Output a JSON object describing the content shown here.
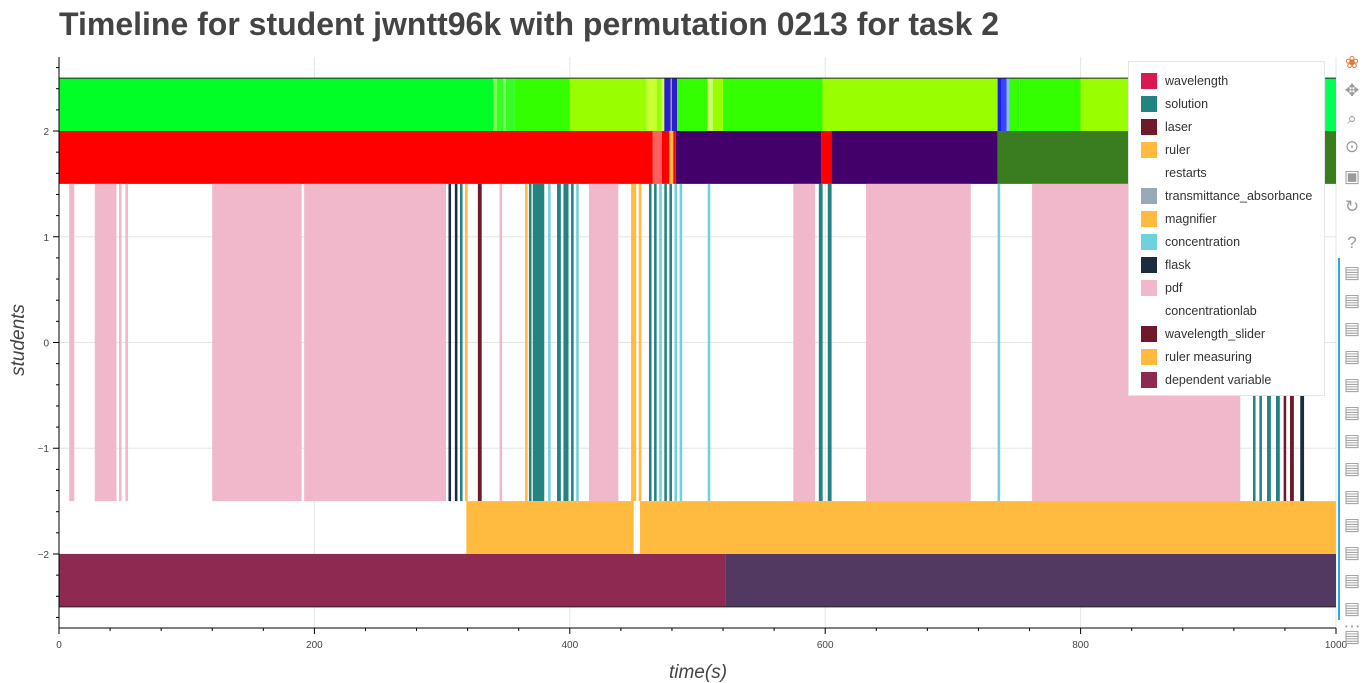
{
  "title": "Timeline for student jwntt96k with permutation 0213 for task 2",
  "chart_data": {
    "type": "timeline",
    "title": "Timeline for student jwntt96k with permutation 0213 for task 2",
    "xlabel": "time(s)",
    "ylabel": "students",
    "xlim": [
      0,
      1000
    ],
    "ylim": [
      -2.7,
      2.7
    ],
    "xticks": [
      0,
      200,
      400,
      600,
      800,
      1000
    ],
    "yticks": [
      -2,
      -1,
      0,
      1,
      2
    ],
    "ytick_labels": [
      "−2",
      "−1",
      "0",
      "1",
      "2"
    ],
    "grid": true,
    "legend_position": "top-right",
    "legend": [
      {
        "name": "wavelength",
        "color": "#d81b4f"
      },
      {
        "name": "solution",
        "color": "#228380"
      },
      {
        "name": "laser",
        "color": "#6e1a2a"
      },
      {
        "name": "ruler",
        "color": "#ffba3f"
      },
      {
        "name": "restarts",
        "color": "#ffffff"
      },
      {
        "name": "transmittance_absorbance",
        "color": "#9aa8bb"
      },
      {
        "name": "magnifier",
        "color": "#ffba3f"
      },
      {
        "name": "concentration",
        "color": "#6fd1dc"
      },
      {
        "name": "flask",
        "color": "#1b2c3e"
      },
      {
        "name": "pdf",
        "color": "#f0b8ca"
      },
      {
        "name": "concentrationlab",
        "color": "#ffffff"
      },
      {
        "name": "wavelength_slider",
        "color": "#6e1a2a"
      },
      {
        "name": "ruler measuring",
        "color": "#ffba3f"
      },
      {
        "name": "dependent variable",
        "color": "#8e2a51"
      }
    ],
    "rows": [
      {
        "y0": 2.0,
        "y1": 2.5,
        "segments": [
          [
            0,
            340,
            "#00ff26"
          ],
          [
            340,
            343,
            "#7dff4d"
          ],
          [
            343,
            348,
            "#33ff26"
          ],
          [
            348,
            350,
            "#88ff66"
          ],
          [
            350,
            357,
            "#33ff26"
          ],
          [
            357,
            400,
            "#33ff00"
          ],
          [
            400,
            460,
            "#99ff00"
          ],
          [
            460,
            468,
            "#c8ff33"
          ],
          [
            468,
            472,
            "#99ff00"
          ],
          [
            472,
            474,
            "#ccff66"
          ],
          [
            474,
            479,
            "#2b1fc8"
          ],
          [
            479,
            480,
            "#b08cff"
          ],
          [
            480,
            484,
            "#2b1fc8"
          ],
          [
            484,
            508,
            "#33ff00"
          ],
          [
            508,
            512,
            "#c8ff66"
          ],
          [
            512,
            520,
            "#99ff00"
          ],
          [
            520,
            598,
            "#33ff00"
          ],
          [
            598,
            735,
            "#99ff00"
          ],
          [
            735,
            738,
            "#1c1ee0"
          ],
          [
            738,
            742,
            "#3545ff"
          ],
          [
            742,
            744,
            "#8fb8ff"
          ],
          [
            744,
            752,
            "#33ff00"
          ],
          [
            752,
            800,
            "#33ff00"
          ],
          [
            800,
            845,
            "#99ff00"
          ],
          [
            845,
            992,
            "#33ff00"
          ],
          [
            992,
            1000,
            "#00ff55"
          ]
        ]
      },
      {
        "y0": 1.5,
        "y1": 2.0,
        "segments": [
          [
            0,
            465,
            "#ff0000"
          ],
          [
            465,
            472,
            "#ff6060"
          ],
          [
            472,
            478,
            "#ff0000"
          ],
          [
            478,
            481,
            "#ffba3f"
          ],
          [
            481,
            483,
            "#ff0000"
          ],
          [
            483,
            597,
            "#44006a"
          ],
          [
            597,
            605,
            "#ff0000"
          ],
          [
            605,
            735,
            "#44006a"
          ],
          [
            735,
            1000,
            "#3a7d21"
          ]
        ]
      },
      {
        "y0": -1.5,
        "y1": 1.5,
        "segments": [
          [
            8,
            12,
            "#f0b8ca"
          ],
          [
            28,
            45,
            "#f0b8ca"
          ],
          [
            47,
            49,
            "#f0b8ca"
          ],
          [
            52,
            54,
            "#f0b8ca"
          ],
          [
            120,
            190,
            "#f0b8ca"
          ],
          [
            192,
            303,
            "#f0b8ca"
          ],
          [
            305,
            307,
            "#1b2c3e"
          ],
          [
            310,
            312,
            "#1b2c3e"
          ],
          [
            314,
            316,
            "#228380"
          ],
          [
            318,
            320,
            "#ffba3f"
          ],
          [
            328,
            331,
            "#6e1a2a"
          ],
          [
            345,
            347,
            "#f0b8ca"
          ],
          [
            365,
            367,
            "#ffba3f"
          ],
          [
            368,
            370,
            "#228380"
          ],
          [
            371,
            380,
            "#228380"
          ],
          [
            383,
            385,
            "#6fd1dc"
          ],
          [
            390,
            393,
            "#228380"
          ],
          [
            395,
            399,
            "#228380"
          ],
          [
            401,
            403,
            "#228380"
          ],
          [
            405,
            407,
            "#6fd1dc"
          ],
          [
            415,
            438,
            "#f0b8ca"
          ],
          [
            448,
            452,
            "#ffba3f"
          ],
          [
            454,
            456,
            "#ffba3f"
          ],
          [
            462,
            464,
            "#228380"
          ],
          [
            466,
            468,
            "#228380"
          ],
          [
            470,
            472,
            "#6fd1dc"
          ],
          [
            474,
            476,
            "#228380"
          ],
          [
            478,
            480,
            "#228380"
          ],
          [
            482,
            484,
            "#6fd1dc"
          ],
          [
            486,
            488,
            "#6fd1dc"
          ],
          [
            508,
            510,
            "#6fd1dc"
          ],
          [
            575,
            592,
            "#f0b8ca"
          ],
          [
            595,
            598,
            "#228380"
          ],
          [
            602,
            605,
            "#228380"
          ],
          [
            632,
            714,
            "#f0b8ca"
          ],
          [
            735,
            737,
            "#6fd1dc"
          ],
          [
            762,
            925,
            "#f0b8ca"
          ],
          [
            935,
            937,
            "#228380"
          ],
          [
            940,
            942,
            "#228380"
          ],
          [
            946,
            949,
            "#228380"
          ],
          [
            953,
            956,
            "#228380"
          ],
          [
            959,
            961,
            "#6e1a2a"
          ],
          [
            964,
            967,
            "#6e1a2a"
          ],
          [
            972,
            975,
            "#1b2c3e"
          ]
        ]
      },
      {
        "y0": -2.0,
        "y1": -1.5,
        "segments": [
          [
            319,
            450,
            "#ffba3f"
          ],
          [
            455,
            1000,
            "#ffba3f"
          ]
        ]
      },
      {
        "y0": -2.5,
        "y1": -2.0,
        "segments": [
          [
            0,
            522,
            "#8e2a51"
          ],
          [
            522,
            1000,
            "#523962"
          ]
        ]
      }
    ]
  },
  "toolbar": {
    "tools": [
      {
        "name": "bokeh-logo-icon",
        "glyph": "❀"
      },
      {
        "name": "pan-icon",
        "glyph": "✥"
      },
      {
        "name": "box-zoom-icon",
        "glyph": "⌕"
      },
      {
        "name": "wheel-zoom-icon",
        "glyph": "⊙"
      },
      {
        "name": "save-icon",
        "glyph": "▣"
      },
      {
        "name": "reset-icon",
        "glyph": "↻"
      },
      {
        "name": "help-icon",
        "glyph": "?"
      },
      {
        "name": "hover-icon",
        "glyph": "▤"
      },
      {
        "name": "hover-icon",
        "glyph": "▤"
      },
      {
        "name": "hover-icon",
        "glyph": "▤"
      },
      {
        "name": "hover-icon",
        "glyph": "▤"
      },
      {
        "name": "hover-icon",
        "glyph": "▤"
      },
      {
        "name": "hover-icon",
        "glyph": "▤"
      },
      {
        "name": "hover-icon",
        "glyph": "▤"
      },
      {
        "name": "hover-icon",
        "glyph": "▤"
      },
      {
        "name": "hover-icon",
        "glyph": "▤"
      },
      {
        "name": "hover-icon",
        "glyph": "▤"
      },
      {
        "name": "hover-icon",
        "glyph": "▤"
      },
      {
        "name": "hover-icon",
        "glyph": "▤"
      },
      {
        "name": "hover-icon",
        "glyph": "▤"
      },
      {
        "name": "hover-icon",
        "glyph": "▤"
      },
      {
        "name": "more-icon",
        "glyph": "⋯"
      }
    ]
  }
}
